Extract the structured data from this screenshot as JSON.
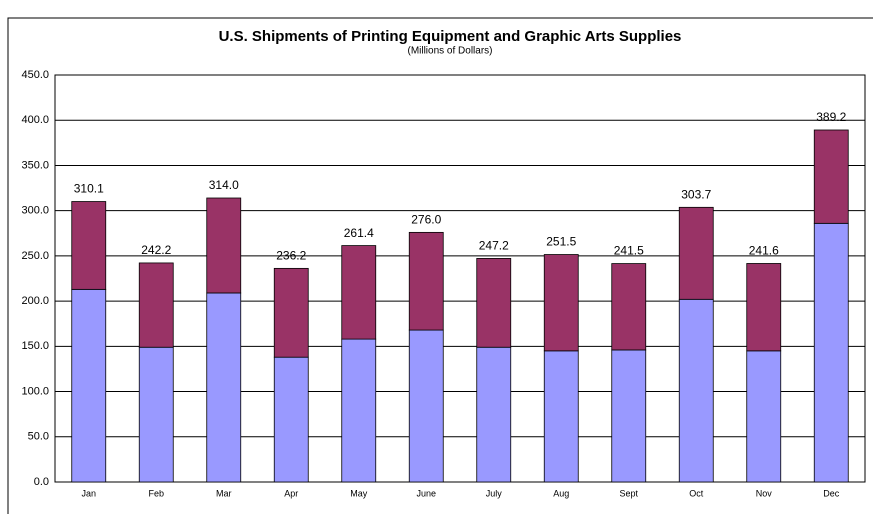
{
  "chart_data": {
    "type": "stacked_bar",
    "title": "U.S. Shipments of Printing Equipment and Graphic Arts Supplies",
    "subtitle": "(Millions of Dollars)",
    "categories": [
      "Jan",
      "Feb",
      "Mar",
      "Apr",
      "May",
      "June",
      "July",
      "Aug",
      "Sept",
      "Oct",
      "Nov",
      "Dec"
    ],
    "series": [
      {
        "name": "Printing Equipment",
        "color": "#9999ff",
        "values": [
          213.0,
          149.0,
          209.0,
          138.0,
          158.0,
          168.0,
          149.0,
          145.0,
          146.0,
          202.0,
          145.0,
          286.0
        ]
      },
      {
        "name": "Graphic Arts Supplies",
        "color": "#993366",
        "values": [
          97.1,
          93.2,
          105.0,
          98.2,
          103.4,
          108.0,
          98.2,
          106.5,
          95.5,
          101.7,
          96.6,
          103.2
        ]
      }
    ],
    "totals": [
      310.1,
      242.2,
      314.0,
      236.2,
      261.4,
      276.0,
      247.2,
      251.5,
      241.5,
      303.7,
      241.6,
      389.2
    ],
    "total_labels": [
      "310.1",
      "242.2",
      "314.0",
      "236.2",
      "261.4",
      "276.0",
      "247.2",
      "251.5",
      "241.5",
      "303.7",
      "241.6",
      "389.2"
    ],
    "ylim": [
      0,
      450
    ],
    "yticks": [
      {
        "value": 0,
        "label": "0.0"
      },
      {
        "value": 50,
        "label": "50.0"
      },
      {
        "value": 100,
        "label": "100.0"
      },
      {
        "value": 150,
        "label": "150.0"
      },
      {
        "value": 200,
        "label": "200.0"
      },
      {
        "value": 250,
        "label": "250.0"
      },
      {
        "value": 300,
        "label": "300.0"
      },
      {
        "value": 350,
        "label": "350.0"
      },
      {
        "value": 400,
        "label": "400.0"
      },
      {
        "value": 450,
        "label": "450.0"
      }
    ],
    "grid": true
  }
}
